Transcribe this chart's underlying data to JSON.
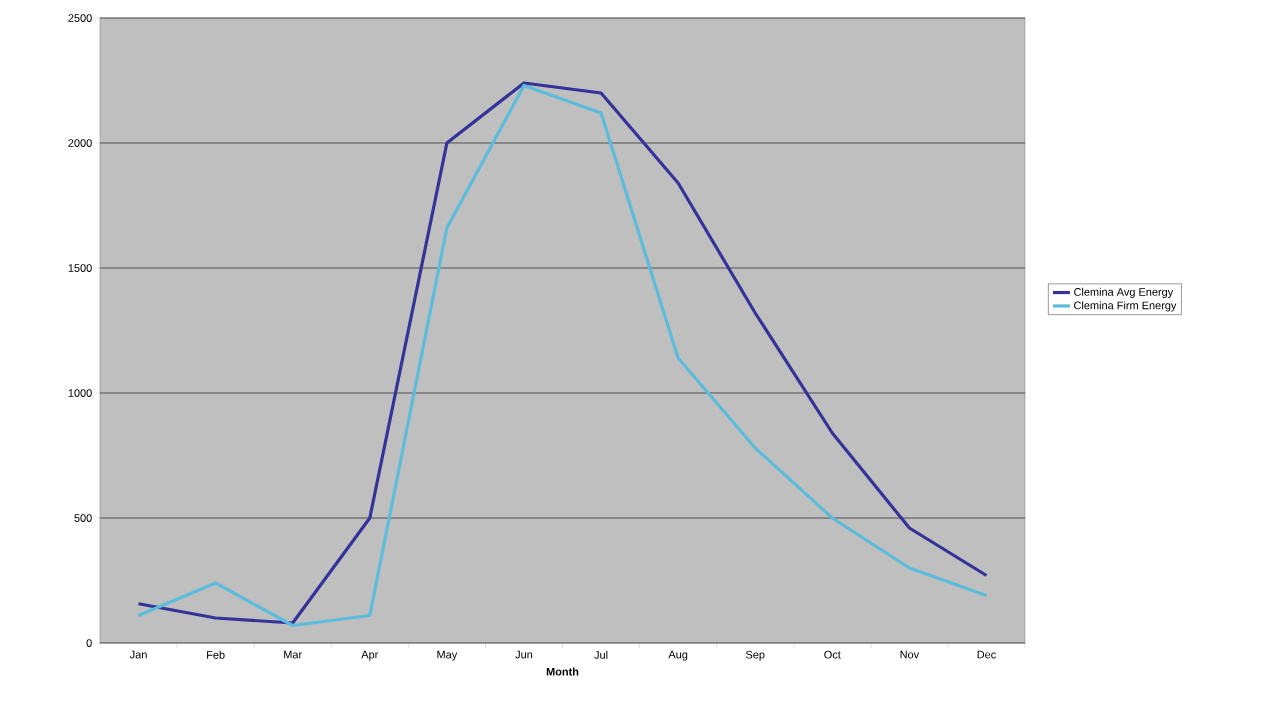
{
  "chart_data": {
    "type": "line",
    "xlabel": "Month",
    "categories": [
      "Jan",
      "Feb",
      "Mar",
      "Apr",
      "May",
      "Jun",
      "Jul",
      "Aug",
      "Sep",
      "Oct",
      "Nov",
      "Dec"
    ],
    "series": [
      {
        "name": "Clemina Avg Energy",
        "color": "#333399",
        "values": [
          157,
          100,
          80,
          500,
          2000,
          2240,
          2200,
          1840,
          1320,
          840,
          460,
          270
        ]
      },
      {
        "name": "Clemina Firm Energy",
        "color": "#5cbcdc",
        "values": [
          110,
          240,
          70,
          110,
          1660,
          2230,
          2120,
          1140,
          780,
          500,
          300,
          190
        ]
      }
    ],
    "ylim": [
      0,
      2500
    ],
    "yticks": [
      0,
      500,
      1000,
      1500,
      2000,
      2500
    ],
    "grid": "y",
    "legend": "right"
  }
}
